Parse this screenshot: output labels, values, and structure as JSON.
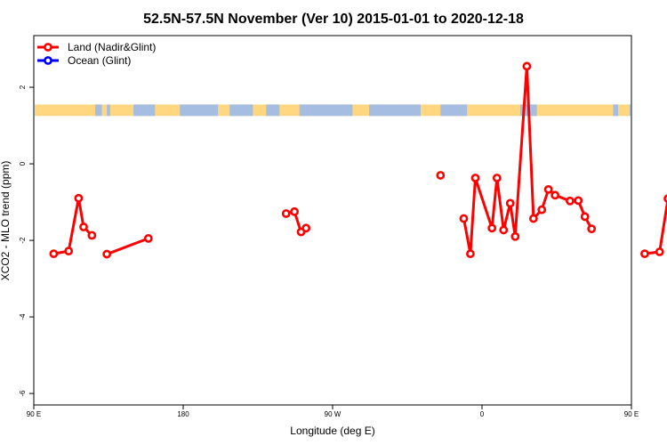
{
  "chart_data": {
    "type": "line",
    "title": "52.5N-57.5N November (Ver 10)   2015-01-01 to 2020-12-18",
    "xlabel": "Longitude (deg E)",
    "ylabel": "XCO2 - MLO trend (ppm)",
    "xlim": [
      90,
      450
    ],
    "ylim": [
      -6.3,
      3.35
    ],
    "x_ticks": [
      {
        "value": 90,
        "label": "90 E"
      },
      {
        "value": 180,
        "label": "180"
      },
      {
        "value": 270,
        "label": "90 W"
      },
      {
        "value": 360,
        "label": "0"
      },
      {
        "value": 450,
        "label": "90 E"
      }
    ],
    "y_ticks": [
      2,
      0,
      -2,
      -4,
      -6
    ],
    "land_ocean_band": {
      "y_range": [
        1.25,
        1.55
      ],
      "land_color": "#ffd780",
      "ocean_color": "#a5bde0",
      "ocean_segments": [
        [
          127,
          131
        ],
        [
          134,
          136
        ],
        [
          150,
          163
        ],
        [
          178,
          201
        ],
        [
          208,
          222
        ],
        [
          230,
          238
        ],
        [
          250,
          282
        ],
        [
          292,
          323
        ],
        [
          335,
          351
        ],
        [
          383,
          393
        ],
        [
          439,
          442
        ],
        [
          449,
          450
        ]
      ]
    },
    "legend": {
      "position": "top-left",
      "entries": [
        {
          "label": "Land (Nadir&Glint)",
          "color": "#ff0000"
        },
        {
          "label": "Ocean (Glint)",
          "color": "#0000ff"
        }
      ]
    },
    "series": [
      {
        "name": "Land (Nadir&Glint)",
        "color": "#ff0000",
        "segments": [
          [
            [
              102,
              -2.35
            ],
            [
              111,
              -2.28
            ],
            [
              117,
              -0.9
            ],
            [
              120,
              -1.65
            ],
            [
              125,
              -1.87
            ]
          ],
          [
            [
              134,
              -2.36
            ],
            [
              159,
              -1.95
            ]
          ],
          [
            [
              242,
              -1.3
            ],
            [
              247,
              -1.25
            ],
            [
              251,
              -1.78
            ],
            [
              254,
              -1.68
            ]
          ],
          [
            [
              349,
              -1.43
            ],
            [
              353,
              -2.35
            ],
            [
              356,
              -0.37
            ],
            [
              366,
              -1.68
            ],
            [
              369,
              -0.37
            ],
            [
              373,
              -1.73
            ],
            [
              377,
              -1.03
            ],
            [
              380,
              -1.9
            ],
            [
              387,
              2.55
            ],
            [
              391,
              -1.43
            ],
            [
              396,
              -1.2
            ],
            [
              400,
              -0.67
            ],
            [
              404,
              -0.82
            ],
            [
              413,
              -0.97
            ],
            [
              418,
              -0.96
            ],
            [
              422,
              -1.38
            ],
            [
              426,
              -1.7
            ]
          ],
          [
            [
              335,
              -0.3
            ]
          ],
          [
            [
              458,
              -2.35
            ],
            [
              467,
              -2.3
            ],
            [
              472,
              -0.91
            ],
            [
              475,
              -1.67
            ],
            [
              480,
              -1.88
            ]
          ],
          [
            [
              492,
              -2.36
            ],
            [
              515,
              -1.95
            ]
          ]
        ]
      },
      {
        "name": "Ocean (Glint)",
        "color": "#0000ff",
        "segments": []
      }
    ]
  }
}
